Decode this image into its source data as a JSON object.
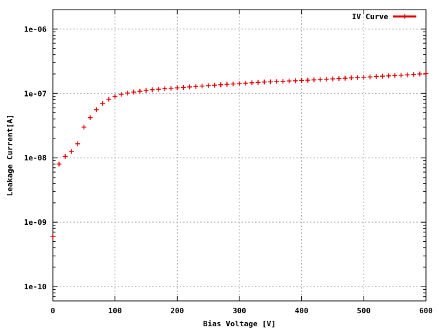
{
  "chart_data": {
    "type": "scatter",
    "xlabel": "Bias Voltage [V]",
    "ylabel": "Leakage Current[A]",
    "xlim": [
      0,
      600
    ],
    "ylim": [
      6e-11,
      2e-06
    ],
    "yscale": "log",
    "grid": true,
    "legend_placement": "top-right",
    "x_ticks": [
      0,
      100,
      200,
      300,
      400,
      500,
      600
    ],
    "x_tick_labels": [
      "0",
      "100",
      "200",
      "300",
      "400",
      "500",
      "600"
    ],
    "y_ticks": [
      1e-10,
      1e-09,
      1e-08,
      1e-07,
      1e-06
    ],
    "y_tick_labels": [
      "1e-10",
      "1e-09",
      "1e-08",
      "1e-07",
      "1e-06"
    ],
    "series": [
      {
        "name": "IV Curve",
        "color": "#e00000",
        "x": [
          0,
          10,
          20,
          30,
          40,
          50,
          60,
          70,
          80,
          90,
          100,
          110,
          120,
          130,
          140,
          150,
          160,
          170,
          180,
          190,
          200,
          210,
          220,
          230,
          240,
          250,
          260,
          270,
          280,
          290,
          300,
          310,
          320,
          330,
          340,
          350,
          360,
          370,
          380,
          390,
          400,
          410,
          420,
          430,
          440,
          450,
          460,
          470,
          480,
          490,
          500,
          510,
          520,
          530,
          540,
          550,
          560,
          570,
          580,
          590,
          600
        ],
        "y": [
          6e-10,
          8e-09,
          1.05e-08,
          1.25e-08,
          1.65e-08,
          3e-08,
          4.2e-08,
          5.6e-08,
          7e-08,
          8.1e-08,
          9e-08,
          9.7e-08,
          1.01e-07,
          1.05e-07,
          1.08e-07,
          1.11e-07,
          1.14e-07,
          1.16e-07,
          1.18e-07,
          1.2e-07,
          1.22e-07,
          1.24e-07,
          1.26e-07,
          1.28e-07,
          1.3e-07,
          1.32e-07,
          1.34e-07,
          1.36e-07,
          1.38e-07,
          1.4e-07,
          1.42e-07,
          1.44e-07,
          1.46e-07,
          1.48e-07,
          1.5e-07,
          1.51e-07,
          1.53e-07,
          1.54e-07,
          1.56e-07,
          1.57e-07,
          1.59e-07,
          1.6e-07,
          1.62e-07,
          1.64e-07,
          1.66e-07,
          1.68e-07,
          1.7e-07,
          1.72e-07,
          1.74e-07,
          1.76e-07,
          1.78e-07,
          1.8e-07,
          1.83e-07,
          1.85e-07,
          1.87e-07,
          1.89e-07,
          1.91e-07,
          1.94e-07,
          1.97e-07,
          2e-07,
          2.03e-07
        ]
      }
    ]
  }
}
